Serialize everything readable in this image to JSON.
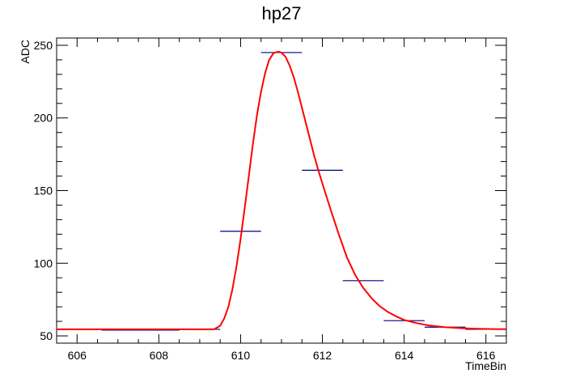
{
  "chart_data": {
    "type": "histogram",
    "title": "hp27",
    "xlabel": "TimeBin",
    "ylabel": "ADC",
    "xlim": [
      605.5,
      616.5
    ],
    "ylim": [
      45,
      255
    ],
    "x_major_ticks": [
      606,
      608,
      610,
      612,
      614,
      616
    ],
    "y_major_ticks": [
      50,
      100,
      150,
      200,
      250
    ],
    "grid": false,
    "legend": "none",
    "colors": {
      "histogram": "#000080",
      "fit": "#ff0000",
      "axis": "#000000"
    },
    "bins": [
      {
        "x_low": 606.6,
        "x_high": 608.5,
        "value": 54
      },
      {
        "x_low": 608.5,
        "x_high": 609.5,
        "value": 54.5
      },
      {
        "x_low": 609.5,
        "x_high": 610.5,
        "value": 122
      },
      {
        "x_low": 610.5,
        "x_high": 611.5,
        "value": 245
      },
      {
        "x_low": 611.5,
        "x_high": 612.5,
        "value": 164
      },
      {
        "x_low": 612.5,
        "x_high": 613.5,
        "value": 88
      },
      {
        "x_low": 613.5,
        "x_high": 614.5,
        "value": 60.5
      },
      {
        "x_low": 614.5,
        "x_high": 615.5,
        "value": 56
      },
      {
        "x_low": 615.5,
        "x_high": 616.5,
        "value": 54.5
      }
    ],
    "fit_curve": {
      "x": [
        605.5,
        609.35,
        609.5,
        609.6,
        609.7,
        609.8,
        609.9,
        610.0,
        610.1,
        610.2,
        610.3,
        610.4,
        610.5,
        610.6,
        610.7,
        610.8,
        610.9,
        610.95,
        611.0,
        611.1,
        611.2,
        611.3,
        611.4,
        611.5,
        611.6,
        611.7,
        611.8,
        611.9,
        612.0,
        612.2,
        612.4,
        612.6,
        612.8,
        613.0,
        613.2,
        613.4,
        613.6,
        613.8,
        614.0,
        614.3,
        614.6,
        615.0,
        615.4,
        615.8,
        616.2,
        616.5
      ],
      "y": [
        54.5,
        54.5,
        57,
        62,
        70,
        82,
        98,
        117,
        138,
        160,
        182,
        202,
        218,
        231,
        240,
        244.5,
        245.5,
        245.5,
        245,
        242,
        236,
        228,
        218,
        207,
        196,
        185,
        174,
        164,
        155,
        137,
        120,
        104,
        92,
        83,
        76,
        70.5,
        66.5,
        63.5,
        61,
        58.8,
        57.2,
        56,
        55.3,
        54.9,
        54.7,
        54.6
      ]
    }
  }
}
